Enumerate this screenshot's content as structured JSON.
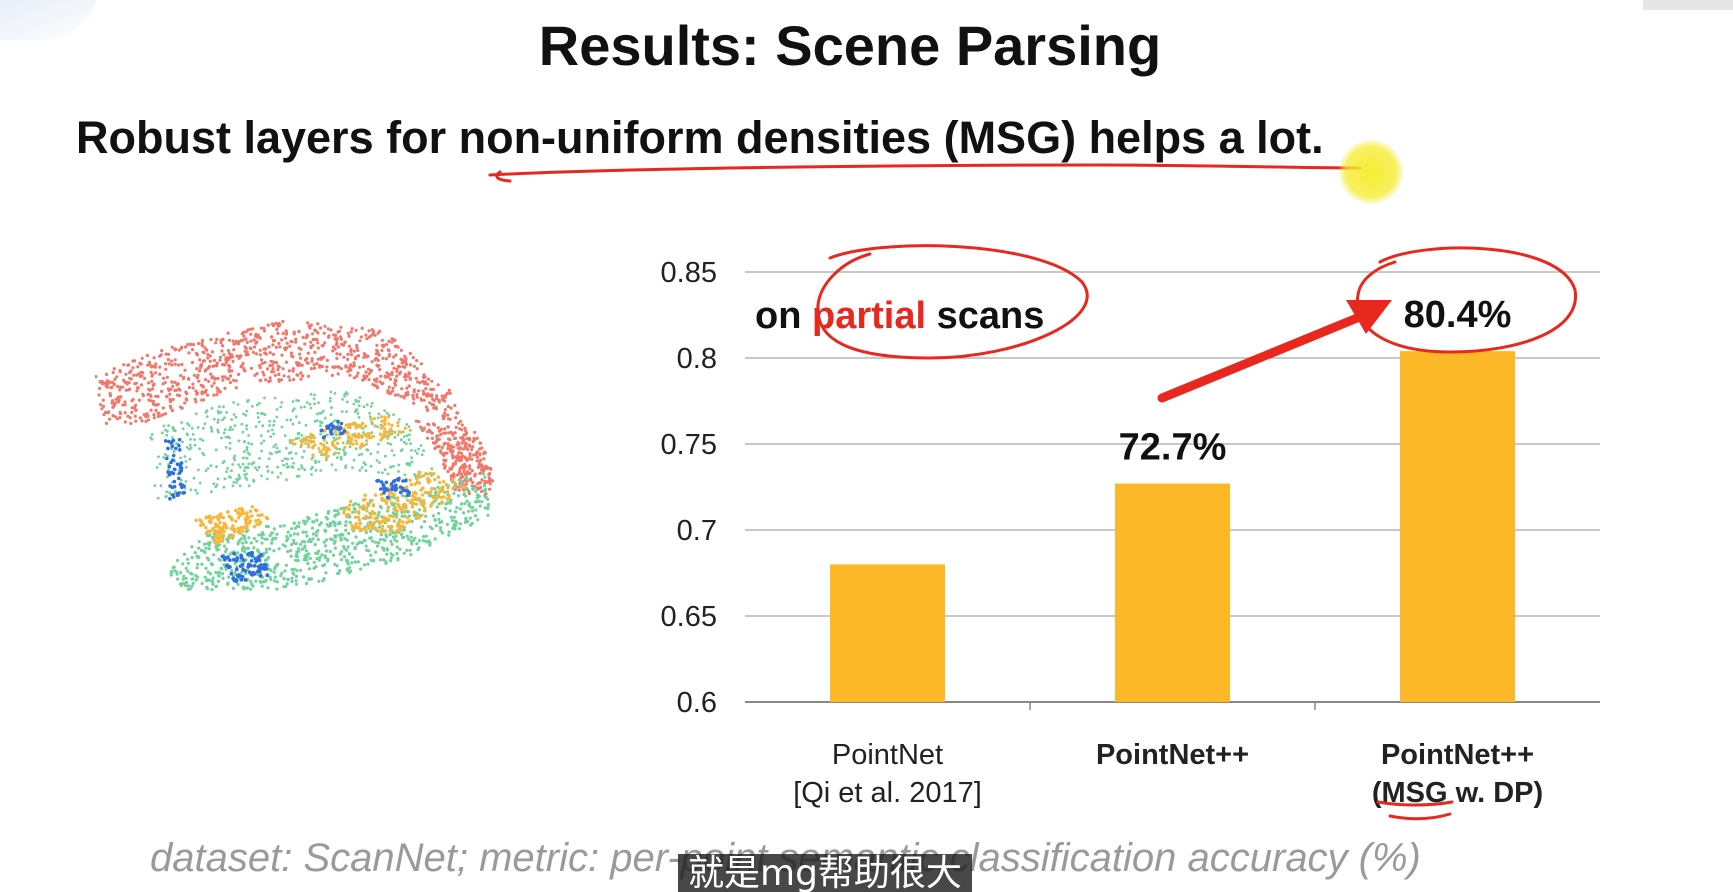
{
  "slide": {
    "title": "Results: Scene Parsing",
    "subtitle": "Robust layers for non-uniform densities (MSG) helps a lot.",
    "caption": "dataset: ScanNet; metric: per-point semantic classification accuracy (%)"
  },
  "video": {
    "subtitle": "就是mg帮助很大"
  },
  "colors": {
    "bar": "#FDB827",
    "annotation": "#E8281E",
    "pointer": "#F5EB28",
    "cloud_wall": "#F2776A",
    "cloud_floor": "#6FD39A",
    "cloud_furniture": "#F5B63A",
    "cloud_object": "#2F6FE0"
  },
  "chart_data": {
    "type": "bar",
    "annotation": "on partial scans",
    "annotation_prefix": "on ",
    "annotation_highlight": "partial",
    "annotation_suffix": " scans",
    "categories": [
      [
        "PointNet",
        "[Qi et al. 2017]"
      ],
      [
        "PointNet++"
      ],
      [
        "PointNet++",
        "(MSG w. DP)"
      ]
    ],
    "category_bold": [
      false,
      true,
      true
    ],
    "values": [
      0.68,
      0.727,
      0.804
    ],
    "data_labels": [
      "",
      "72.7%",
      "80.4%"
    ],
    "ylim": [
      0.6,
      0.85
    ],
    "yticks": [
      0.6,
      0.65,
      0.7,
      0.75,
      0.8,
      0.85
    ],
    "ytick_labels": [
      "0.6",
      "0.65",
      "0.7",
      "0.75",
      "0.8",
      "0.85"
    ],
    "grid": true
  }
}
